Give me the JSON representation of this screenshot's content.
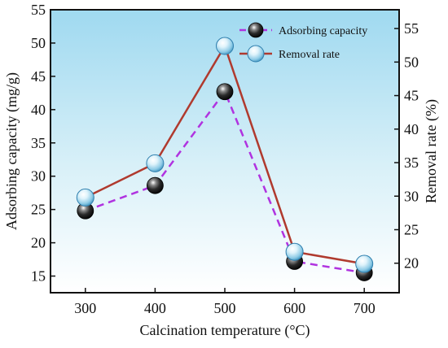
{
  "chart_data": {
    "type": "line",
    "x": [
      300,
      400,
      500,
      600,
      700
    ],
    "xlabel": "Calcination temperature (°C)",
    "ylabel": "Adsorbing capacity (mg/g)",
    "y2label": "Removal rate (%)",
    "xticks": [
      "300",
      "400",
      "500",
      "600",
      "700"
    ],
    "yticks": [
      "15",
      "20",
      "25",
      "30",
      "35",
      "40",
      "45",
      "50",
      "55"
    ],
    "y2ticks": [
      "20",
      "25",
      "30",
      "35",
      "40",
      "45",
      "50",
      "55"
    ],
    "xlim": [
      250,
      750
    ],
    "ylim": [
      12.5,
      55
    ],
    "y2lim": [
      15.6,
      57.8
    ],
    "grid": false,
    "legend_position": "top-right",
    "series": [
      {
        "name": "Adsorbing capacity",
        "axis": "left",
        "values": [
          24.8,
          28.6,
          42.7,
          17.2,
          15.5
        ],
        "color": "#b033e0",
        "line_style": "dashed",
        "marker": "dark-sphere"
      },
      {
        "name": "Removal rate",
        "axis": "right",
        "values": [
          29.8,
          34.9,
          52.4,
          21.7,
          19.9
        ],
        "color": "#b03a2e",
        "line_style": "solid",
        "marker": "light-blue-sphere"
      }
    ]
  }
}
